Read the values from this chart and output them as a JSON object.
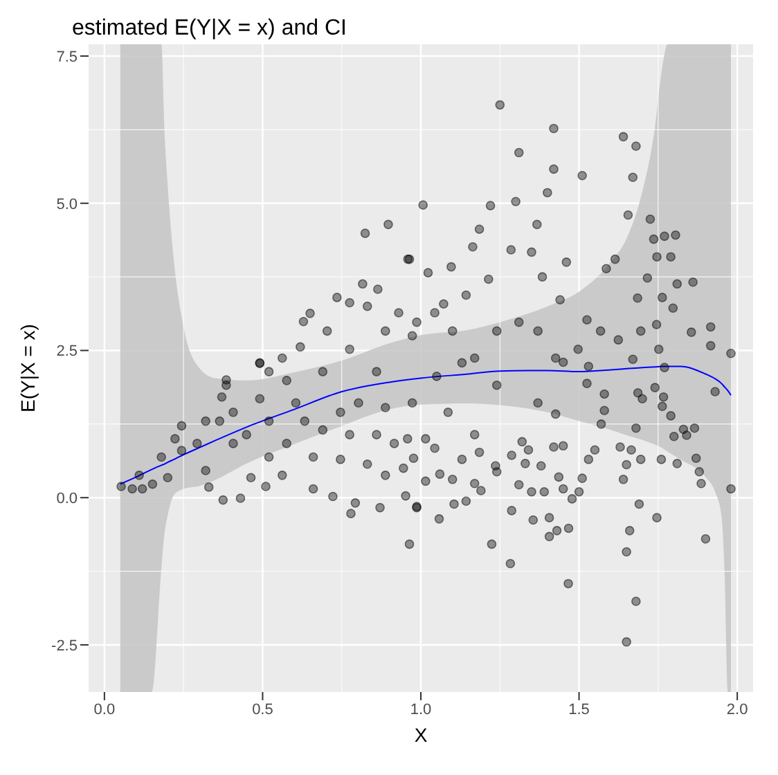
{
  "chart_data": {
    "type": "scatter",
    "title": "estimated E(Y|X = x) and CI",
    "xlabel": "X",
    "ylabel": "E(Y|X = x)",
    "xlim": [
      -0.05,
      2.05
    ],
    "ylim": [
      -3.3,
      7.7
    ],
    "xticks": [
      {
        "value": 0,
        "label": "0.0"
      },
      0.5,
      {
        "value": 1,
        "label": "1.0"
      },
      1.5,
      {
        "value": 2,
        "label": "2.0"
      }
    ],
    "yticks": [
      -2.5,
      {
        "value": 0,
        "label": "0.0"
      },
      2.5,
      {
        "value": 5,
        "label": "5.0"
      },
      7.5
    ],
    "grid": true,
    "series": [
      {
        "color": "#000000",
        "marker": "circle",
        "x": [
          1.25,
          1.42,
          1.31,
          1.42,
          1.51,
          1.67,
          1.64,
          1.68,
          1.4,
          1.007,
          1.22,
          1.3,
          1.655,
          1.725,
          1.77,
          1.805,
          1.736,
          1.185,
          1.367,
          1.746,
          1.79,
          1.86,
          1.81,
          1.916,
          1.855,
          1.98,
          1.916,
          1.98,
          1.93,
          1.9,
          1.65,
          1.68,
          1.65,
          1.66,
          1.746,
          1.466,
          1.467,
          1.43,
          1.406,
          1.406,
          1.355,
          1.283,
          1.287,
          1.224,
          1.058,
          0.964,
          0.987,
          1.143,
          1.105,
          1.69,
          1.478,
          1.35,
          1.39,
          1.45,
          1.5,
          1.31,
          1.19,
          1.015,
          1.886,
          1.88,
          1.87,
          1.81,
          1.76,
          1.695,
          1.64,
          1.65,
          1.53,
          1.51,
          1.436,
          1.24,
          1.17,
          1.1,
          1.06,
          1.38,
          1.33,
          1.55,
          1.63,
          1.665,
          1.8,
          1.84,
          1.865,
          1.83,
          1.79,
          1.68,
          1.763,
          1.767,
          1.74,
          1.686,
          1.7,
          1.67,
          1.77,
          1.53,
          1.45,
          1.525,
          1.58,
          1.57,
          0.977,
          1.015,
          1.13,
          1.185,
          1.236,
          1.287,
          1.34,
          1.42,
          1.45,
          1.32,
          1.05,
          1.13,
          1.24,
          1.37,
          1.086,
          1.17,
          1.044,
          0.958,
          1.426,
          1.58,
          1.143,
          1.072,
          1.285,
          1.35,
          1.384,
          1.46,
          1.44,
          1.096,
          1.164,
          1.023,
          0.959,
          1.214,
          1.586,
          1.614,
          1.716,
          1.685,
          1.763,
          1.797,
          1.525,
          1.568,
          1.624,
          1.695,
          1.745,
          1.752,
          0.987,
          1.044,
          1.31,
          1.24,
          1.37,
          1.426,
          1.497,
          1.17,
          1.1,
          0.824,
          0.897,
          0.964,
          0.816,
          0.864,
          0.735,
          0.65,
          0.629,
          0.831,
          0.775,
          0.93,
          0.888,
          0.704,
          0.619,
          0.562,
          0.491,
          0.385,
          0.52,
          0.775,
          0.973,
          0.053,
          0.088,
          0.12,
          0.152,
          0.11,
          0.2,
          0.18,
          0.244,
          0.244,
          0.32,
          0.33,
          0.375,
          0.43,
          0.385,
          0.371,
          0.364,
          0.407,
          0.449,
          0.463,
          0.51,
          0.52,
          0.576,
          0.562,
          0.66,
          0.722,
          0.779,
          0.793,
          0.66,
          0.746,
          0.831,
          0.871,
          0.888,
          0.945,
          0.952,
          0.987,
          0.52,
          0.605,
          0.69,
          0.775,
          0.86,
          0.916,
          0.803,
          0.888,
          0.973,
          0.86,
          0.69,
          0.576,
          0.491,
          0.746,
          0.293,
          0.32,
          0.407,
          0.491,
          0.633,
          0.223
        ],
        "values": [
          6.67,
          6.27,
          5.86,
          5.58,
          5.47,
          5.44,
          6.13,
          5.97,
          5.18,
          4.97,
          4.96,
          5.03,
          4.8,
          4.73,
          4.44,
          4.46,
          4.39,
          4.56,
          4.64,
          4.09,
          4.09,
          3.66,
          3.63,
          2.9,
          2.81,
          2.45,
          2.58,
          0.15,
          1.8,
          -0.7,
          -2.45,
          -1.76,
          -0.92,
          -0.56,
          -0.34,
          -1.46,
          -0.52,
          -0.56,
          -0.66,
          -0.34,
          -0.38,
          -1.12,
          -0.22,
          -0.79,
          -0.36,
          -0.79,
          -0.17,
          -0.06,
          -0.11,
          -0.11,
          -0.02,
          0.1,
          0.1,
          0.15,
          0.1,
          0.22,
          0.12,
          0.28,
          0.24,
          0.44,
          0.67,
          0.58,
          0.65,
          0.65,
          0.31,
          0.56,
          0.65,
          0.33,
          0.35,
          0.44,
          0.24,
          0.31,
          0.4,
          0.54,
          0.58,
          0.81,
          0.86,
          0.81,
          1.04,
          1.06,
          1.18,
          1.16,
          1.39,
          1.18,
          1.55,
          1.71,
          1.87,
          1.78,
          1.68,
          2.35,
          2.21,
          2.23,
          2.3,
          1.94,
          1.48,
          1.25,
          0.67,
          1.0,
          0.65,
          0.77,
          0.54,
          0.72,
          0.81,
          0.86,
          0.88,
          0.95,
          2.06,
          2.29,
          1.91,
          1.61,
          1.45,
          1.07,
          0.84,
          1.0,
          1.42,
          1.76,
          3.44,
          3.29,
          4.21,
          4.17,
          3.75,
          4.0,
          3.36,
          3.92,
          4.26,
          3.82,
          4.05,
          3.71,
          3.89,
          4.05,
          3.73,
          3.39,
          3.4,
          3.22,
          3.02,
          2.83,
          2.68,
          2.83,
          2.94,
          2.52,
          2.98,
          3.14,
          2.98,
          2.83,
          2.83,
          2.37,
          2.52,
          2.37,
          2.83,
          4.49,
          4.64,
          4.05,
          3.63,
          3.54,
          3.4,
          3.13,
          2.99,
          3.25,
          3.31,
          3.14,
          2.83,
          2.83,
          2.56,
          2.37,
          2.28,
          2.0,
          2.14,
          2.52,
          2.75,
          0.19,
          0.15,
          0.15,
          0.23,
          0.38,
          0.34,
          0.69,
          1.22,
          0.8,
          0.46,
          0.18,
          -0.04,
          -0.01,
          1.91,
          1.71,
          1.3,
          1.45,
          1.07,
          0.34,
          0.19,
          0.69,
          0.92,
          0.38,
          0.15,
          0.02,
          -0.27,
          -0.09,
          0.69,
          0.65,
          0.57,
          -0.17,
          0.38,
          0.5,
          0.03,
          -0.15,
          1.3,
          1.61,
          1.15,
          1.07,
          1.07,
          0.92,
          1.61,
          1.53,
          1.61,
          2.14,
          2.14,
          1.99,
          2.29,
          1.45,
          0.92,
          1.3,
          0.92,
          1.68,
          1.3,
          1.0
        ]
      },
      {
        "type": "line",
        "color": "#0000ff",
        "x": [
          0.05,
          0.1,
          0.15,
          0.18,
          0.19,
          0.2,
          0.22,
          0.25,
          0.3,
          0.35,
          0.45,
          0.6,
          0.75,
          0.9,
          1.0,
          1.15,
          1.25,
          1.4,
          1.5,
          1.6,
          1.65,
          1.7,
          1.74,
          1.76,
          1.78,
          1.82,
          1.9,
          1.93,
          1.95,
          1.96,
          1.97,
          1.98
        ],
        "values": [
          0.23,
          0.35,
          0.48,
          0.55,
          0.57,
          0.6,
          0.65,
          0.73,
          0.85,
          0.97,
          1.2,
          1.5,
          1.8,
          1.96,
          2.03,
          2.1,
          2.15,
          2.16,
          2.14,
          2.17,
          2.19,
          2.21,
          2.22,
          2.23,
          2.23,
          2.23,
          2.1,
          2.02,
          1.94,
          1.88,
          1.82,
          1.74
        ],
        "lower": [
          -3.3,
          -3.3,
          -3.3,
          -1.2,
          -0.6,
          -0.3,
          0.05,
          0.15,
          0.2,
          0.3,
          0.58,
          0.91,
          1.22,
          1.5,
          1.58,
          1.6,
          1.57,
          1.45,
          1.3,
          1.15,
          1.06,
          0.98,
          0.9,
          0.85,
          0.78,
          0.65,
          0.35,
          0.1,
          -0.3,
          -1.3,
          -3.3,
          -3.3
        ],
        "upper": [
          7.7,
          7.7,
          7.7,
          7.7,
          6.2,
          5.3,
          4.0,
          2.9,
          2.2,
          2.03,
          1.99,
          2.13,
          2.33,
          2.62,
          2.76,
          2.85,
          2.98,
          3.25,
          3.5,
          4.0,
          4.4,
          5.2,
          6.3,
          7.2,
          7.7,
          7.7,
          7.7,
          7.7,
          7.7,
          7.7,
          7.7,
          7.7
        ]
      }
    ]
  }
}
